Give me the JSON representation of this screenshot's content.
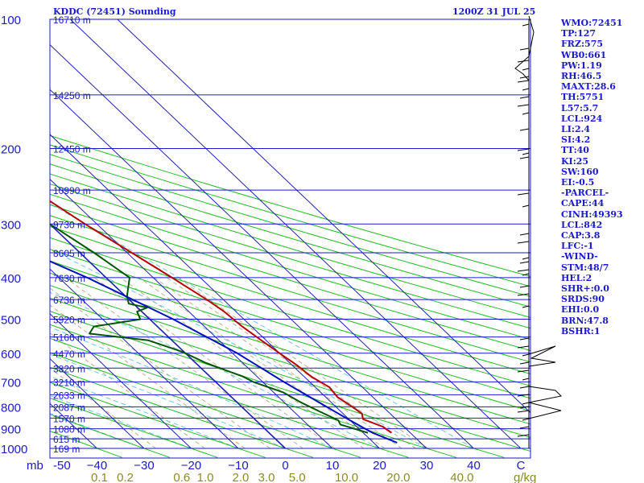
{
  "header": {
    "station": "KDDC (72451) Sounding",
    "time": "1200Z 31 JUL 25"
  },
  "colors": {
    "frame": "#1a1acc",
    "isotherm": "#2020b0",
    "dry_adiabat": "#22bb22",
    "moist_adiabat": "#6fc6dd",
    "mixing_ratio": "#b8b08a",
    "temperature": "#b80000",
    "dewpoint": "#005500",
    "parcel": "#0010c0",
    "label_green": "#8a8a28"
  },
  "units": {
    "pressure": "mb",
    "mixing_ratio": "g/kg"
  },
  "indices": [
    "WMO:72451",
    "TP:127",
    "FRZ:575",
    "WB0:661",
    "PW:1.19",
    "RH:46.5",
    "MAXT:28.6",
    "TH:5751",
    "L57:5.7",
    "LCL:924",
    "LI:2.4",
    "SI:4.2",
    "TT:40",
    "KI:25",
    "SW:160",
    "EI:-0.5",
    "-PARCEL-",
    "CAPE:44",
    "CINH:49393",
    "LCL:842",
    "CAP:3.8",
    "LFC:-1",
    "-WIND-",
    "STM:48/7",
    "HEL:2",
    "SHR+:0.0",
    "SRDS:90",
    "EHI:0.0",
    "BRN:47.8",
    "BSHR:1"
  ],
  "chart_data": {
    "type": "line",
    "title": "KDDC (72451) Sounding",
    "subtitle": "1200Z 31 JUL 25",
    "y_axis": {
      "label": "mb",
      "scale": "log",
      "range": [
        1000,
        100
      ],
      "ticks": [
        100,
        200,
        300,
        400,
        500,
        600,
        700,
        800,
        900,
        1000
      ]
    },
    "x_axis": {
      "range": [
        -50,
        50
      ],
      "ticks": [
        -50,
        -40,
        -30,
        -20,
        -10,
        0,
        10,
        20,
        30,
        40,
        50
      ],
      "tick_labels": [
        "-50",
        "−40",
        "−30",
        "−20",
        "−10",
        "0",
        "10",
        "20",
        "30",
        "40",
        "C"
      ]
    },
    "mixing_ratio_labels": [
      "0.1",
      "0.2",
      "0.6",
      "1.0",
      "2.0",
      "3.0",
      "5.0",
      "10.0",
      "20.0",
      "40.0"
    ],
    "mixing_ratio_label_x": [
      -39.5,
      -34,
      -22,
      -17,
      -9.5,
      -4,
      2.5,
      13,
      24,
      37.5
    ],
    "heights": [
      {
        "label": "16710 m",
        "p": 100
      },
      {
        "label": "14250 m",
        "p": 150
      },
      {
        "label": "12450 m",
        "p": 200
      },
      {
        "label": "10990 m",
        "p": 250
      },
      {
        "label": "9730 m",
        "p": 300
      },
      {
        "label": "8605 m",
        "p": 350
      },
      {
        "label": "7630 m",
        "p": 400
      },
      {
        "label": "6736 m",
        "p": 450
      },
      {
        "label": "5920 m",
        "p": 500
      },
      {
        "label": "5166 m",
        "p": 550
      },
      {
        "label": "4470 m",
        "p": 600
      },
      {
        "label": "3820 m",
        "p": 650
      },
      {
        "label": "3210 m",
        "p": 700
      },
      {
        "label": "2633 m",
        "p": 750
      },
      {
        "label": "2087 m",
        "p": 800
      },
      {
        "label": "1570 m",
        "p": 850
      },
      {
        "label": "1080 m",
        "p": 900
      },
      {
        "label": "615 m",
        "p": 950
      },
      {
        "label": "169 m",
        "p": 1000
      }
    ],
    "series": [
      {
        "key": "temperature",
        "points": [
          [
            920,
            26.0
          ],
          [
            890,
            25.5
          ],
          [
            855,
            23.0
          ],
          [
            830,
            24.0
          ],
          [
            800,
            23.5
          ],
          [
            760,
            22.5
          ],
          [
            720,
            23.0
          ],
          [
            680,
            21.5
          ],
          [
            640,
            21.0
          ],
          [
            600,
            20.0
          ],
          [
            560,
            19.0
          ],
          [
            520,
            18.0
          ],
          [
            480,
            17.5
          ],
          [
            450,
            16.5
          ],
          [
            400,
            14.0
          ],
          [
            350,
            11.0
          ],
          [
            300,
            7.5
          ],
          [
            250,
            4.0
          ],
          [
            200,
            1.5
          ],
          [
            170,
            1.0
          ],
          [
            140,
            0.0
          ],
          [
            120,
            0.0
          ],
          [
            100,
            -2.0
          ]
        ]
      },
      {
        "key": "dewpoint",
        "points": [
          [
            920,
            21.0
          ],
          [
            880,
            17.0
          ],
          [
            860,
            17.5
          ],
          [
            820,
            15.5
          ],
          [
            780,
            13.5
          ],
          [
            740,
            12.0
          ],
          [
            700,
            8.0
          ],
          [
            680,
            7.0
          ],
          [
            660,
            5.0
          ],
          [
            650,
            4.0
          ],
          [
            630,
            2.0
          ],
          [
            600,
            0.0
          ],
          [
            590,
            -1.0
          ],
          [
            560,
            -5.0
          ],
          [
            540,
            -16.0
          ],
          [
            520,
            -13.5
          ],
          [
            500,
            -2.0
          ],
          [
            480,
            -1.0
          ],
          [
            470,
            2.0
          ],
          [
            460,
            -1.0
          ],
          [
            440,
            0.5
          ],
          [
            400,
            5.0
          ],
          [
            350,
            3.0
          ],
          [
            300,
            0.0
          ],
          [
            250,
            -3.0
          ],
          [
            200,
            -17.0
          ],
          [
            150,
            -14.0
          ],
          [
            100,
            -13.0
          ]
        ]
      },
      {
        "key": "parcel",
        "points": [
          [
            970,
            25.0
          ],
          [
            920,
            22.0
          ],
          [
            860,
            20.0
          ],
          [
            800,
            18.0
          ],
          [
            700,
            14.5
          ],
          [
            600,
            11.0
          ],
          [
            500,
            5.0
          ],
          [
            400,
            -4.0
          ],
          [
            300,
            -18.0
          ],
          [
            250,
            -31.0
          ],
          [
            200,
            -45.0
          ],
          [
            150,
            -60.0
          ],
          [
            100,
            -78.0
          ]
        ]
      }
    ]
  }
}
